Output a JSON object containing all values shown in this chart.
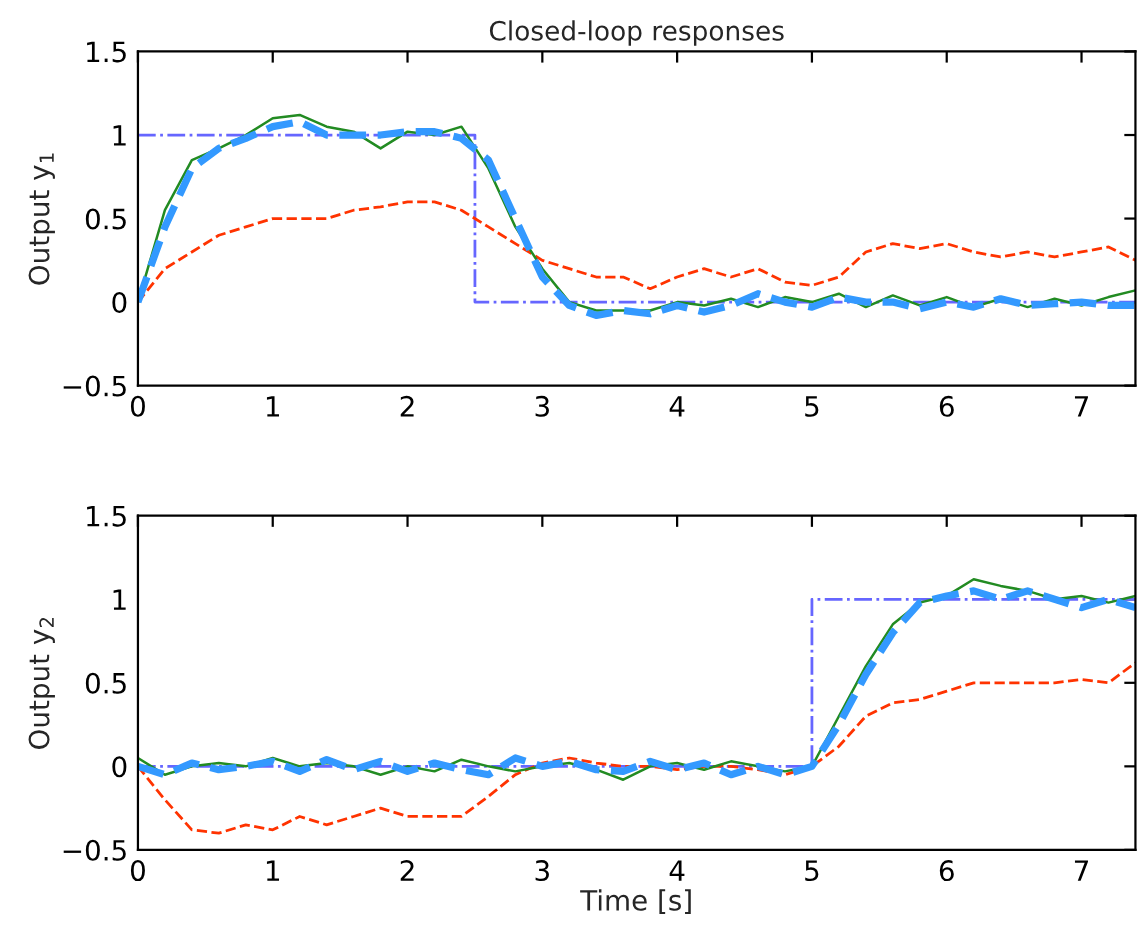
{
  "chart_data": [
    {
      "type": "line",
      "title": "Closed-loop responses",
      "ylabel": "Output y$_{1}$",
      "xlim": [
        0,
        7.4
      ],
      "ylim": [
        -0.5,
        1.5
      ],
      "xticks": [
        0,
        1,
        2,
        3,
        4,
        5,
        6,
        7
      ],
      "yticks": [
        {
          "value": -0.5,
          "label": "−0.5"
        },
        0,
        0.5,
        1,
        1.5
      ],
      "series": [
        {
          "color": "#6666ff",
          "line_style": "dashdot",
          "x": [
            0,
            2.5,
            2.5,
            7.4
          ],
          "values": [
            1,
            1,
            0,
            0
          ]
        },
        {
          "color": "#ff3300",
          "line_style": "dashed",
          "x": [
            0,
            0.2,
            0.4,
            0.6,
            0.8,
            1.0,
            1.2,
            1.4,
            1.6,
            1.8,
            2.0,
            2.2,
            2.4,
            2.6,
            2.8,
            3.0,
            3.2,
            3.4,
            3.6,
            3.8,
            4.0,
            4.2,
            4.4,
            4.6,
            4.8,
            5.0,
            5.2,
            5.4,
            5.6,
            5.8,
            6.0,
            6.2,
            6.4,
            6.6,
            6.8,
            7.0,
            7.2,
            7.4
          ],
          "values": [
            0,
            0.2,
            0.3,
            0.4,
            0.45,
            0.5,
            0.5,
            0.5,
            0.55,
            0.57,
            0.6,
            0.6,
            0.55,
            0.45,
            0.35,
            0.25,
            0.2,
            0.15,
            0.15,
            0.08,
            0.15,
            0.2,
            0.15,
            0.2,
            0.12,
            0.1,
            0.15,
            0.3,
            0.35,
            0.32,
            0.35,
            0.3,
            0.27,
            0.3,
            0.27,
            0.3,
            0.33,
            0.25
          ]
        },
        {
          "color": "#228b22",
          "line_style": "solid",
          "x": [
            0,
            0.2,
            0.4,
            0.6,
            0.8,
            1.0,
            1.2,
            1.4,
            1.6,
            1.8,
            2.0,
            2.2,
            2.4,
            2.6,
            2.8,
            3.0,
            3.2,
            3.4,
            3.6,
            3.8,
            4.0,
            4.2,
            4.4,
            4.6,
            4.8,
            5.0,
            5.2,
            5.4,
            5.6,
            5.8,
            6.0,
            6.2,
            6.4,
            6.6,
            6.8,
            7.0,
            7.2,
            7.4
          ],
          "values": [
            0,
            0.55,
            0.85,
            0.92,
            1.0,
            1.1,
            1.12,
            1.05,
            1.02,
            0.92,
            1.02,
            1.0,
            1.05,
            0.8,
            0.45,
            0.2,
            0.0,
            -0.05,
            -0.05,
            -0.05,
            0.0,
            -0.02,
            0.02,
            -0.03,
            0.03,
            0.0,
            0.05,
            -0.03,
            0.04,
            -0.02,
            0.03,
            -0.03,
            0.02,
            -0.03,
            0.02,
            -0.02,
            0.03,
            0.07
          ]
        },
        {
          "color": "#3399ff",
          "line_style": "dashed",
          "x": [
            0,
            0.2,
            0.4,
            0.6,
            0.8,
            1.0,
            1.2,
            1.4,
            1.6,
            1.8,
            2.0,
            2.2,
            2.4,
            2.6,
            2.8,
            3.0,
            3.2,
            3.4,
            3.6,
            3.8,
            4.0,
            4.2,
            4.4,
            4.6,
            4.8,
            5.0,
            5.2,
            5.4,
            5.6,
            5.8,
            6.0,
            6.2,
            6.4,
            6.6,
            6.8,
            7.0,
            7.2,
            7.4
          ],
          "values": [
            0,
            0.45,
            0.8,
            0.92,
            0.98,
            1.05,
            1.08,
            1.0,
            1.0,
            1.0,
            1.02,
            1.02,
            0.98,
            0.85,
            0.5,
            0.15,
            -0.02,
            -0.08,
            -0.05,
            -0.07,
            -0.02,
            -0.06,
            -0.02,
            0.05,
            0.0,
            -0.03,
            0.03,
            0.0,
            0.0,
            -0.04,
            0.0,
            -0.03,
            0.02,
            -0.02,
            -0.01,
            0.0,
            -0.02,
            -0.02
          ]
        }
      ]
    },
    {
      "type": "line",
      "xlabel": "Time [s]",
      "ylabel": "Output y$_{2}$",
      "xlim": [
        0,
        7.4
      ],
      "ylim": [
        -0.5,
        1.5
      ],
      "xticks": [
        0,
        1,
        2,
        3,
        4,
        5,
        6,
        7
      ],
      "yticks": [
        {
          "value": -0.5,
          "label": "−0.5"
        },
        0,
        0.5,
        1,
        1.5
      ],
      "series": [
        {
          "color": "#6666ff",
          "line_style": "dashdot",
          "x": [
            0,
            5,
            5,
            7.4
          ],
          "values": [
            0,
            0,
            1,
            1
          ]
        },
        {
          "color": "#ff3300",
          "line_style": "dashed",
          "x": [
            0,
            0.2,
            0.4,
            0.6,
            0.8,
            1.0,
            1.2,
            1.4,
            1.6,
            1.8,
            2.0,
            2.2,
            2.4,
            2.6,
            2.8,
            3.0,
            3.2,
            3.4,
            3.6,
            3.8,
            4.0,
            4.2,
            4.4,
            4.6,
            4.8,
            5.0,
            5.2,
            5.4,
            5.6,
            5.8,
            6.0,
            6.2,
            6.4,
            6.6,
            6.8,
            7.0,
            7.2,
            7.4
          ],
          "values": [
            0,
            -0.2,
            -0.38,
            -0.4,
            -0.35,
            -0.38,
            -0.3,
            -0.35,
            -0.3,
            -0.25,
            -0.3,
            -0.3,
            -0.3,
            -0.18,
            -0.05,
            0.02,
            0.05,
            0.02,
            0.0,
            0.0,
            -0.02,
            0.0,
            0.0,
            -0.02,
            -0.05,
            0.0,
            0.12,
            0.3,
            0.38,
            0.4,
            0.45,
            0.5,
            0.5,
            0.5,
            0.5,
            0.52,
            0.5,
            0.62
          ]
        },
        {
          "color": "#228b22",
          "line_style": "solid",
          "x": [
            0,
            0.2,
            0.4,
            0.6,
            0.8,
            1.0,
            1.2,
            1.4,
            1.6,
            1.8,
            2.0,
            2.2,
            2.4,
            2.6,
            2.8,
            3.0,
            3.2,
            3.4,
            3.6,
            3.8,
            4.0,
            4.2,
            4.4,
            4.6,
            4.8,
            5.0,
            5.2,
            5.4,
            5.6,
            5.8,
            6.0,
            6.2,
            6.4,
            6.6,
            6.8,
            7.0,
            7.2,
            7.4
          ],
          "values": [
            0.05,
            -0.05,
            0,
            0.02,
            0,
            0.05,
            0,
            0.02,
            0,
            -0.05,
            0,
            -0.03,
            0.04,
            0,
            -0.03,
            0,
            0.02,
            -0.02,
            -0.08,
            0,
            0.02,
            -0.02,
            0.03,
            0,
            -0.03,
            0,
            0.3,
            0.6,
            0.85,
            0.98,
            1.02,
            1.12,
            1.08,
            1.05,
            1.0,
            1.02,
            0.98,
            1.02
          ]
        },
        {
          "color": "#3399ff",
          "line_style": "dashed",
          "x": [
            0,
            0.2,
            0.4,
            0.6,
            0.8,
            1.0,
            1.2,
            1.4,
            1.6,
            1.8,
            2.0,
            2.2,
            2.4,
            2.6,
            2.8,
            3.0,
            3.2,
            3.4,
            3.6,
            3.8,
            4.0,
            4.2,
            4.4,
            4.6,
            4.8,
            5.0,
            5.2,
            5.4,
            5.6,
            5.8,
            6.0,
            6.2,
            6.4,
            6.6,
            6.8,
            7.0,
            7.2,
            7.4
          ],
          "values": [
            0,
            -0.05,
            0.02,
            -0.02,
            0,
            0.03,
            -0.03,
            0.04,
            -0.02,
            0.03,
            -0.03,
            0.02,
            -0.02,
            -0.05,
            0.05,
            0,
            0.03,
            -0.02,
            -0.03,
            0.03,
            -0.02,
            0.02,
            -0.05,
            0,
            -0.05,
            0,
            0.25,
            0.55,
            0.8,
            0.98,
            1.02,
            1.05,
            1.0,
            1.05,
            1.0,
            0.95,
            1.0,
            0.95
          ]
        }
      ]
    }
  ]
}
